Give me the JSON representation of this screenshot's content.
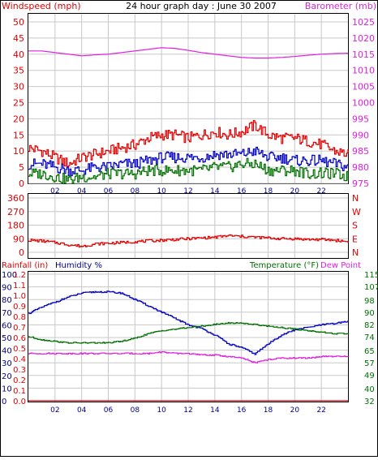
{
  "header": {
    "title": "24 hour graph day : June 30 2007",
    "left_label": "Windspeed (mph)",
    "right_label": "Barometer (mb)"
  },
  "colors": {
    "red": "#e00000",
    "magenta": "#e020e0",
    "blue": "#0000c0",
    "green": "#007000",
    "navy": "#00008b",
    "grid": "#c8c8c8",
    "frame": "#000000"
  },
  "chart_data": [
    {
      "id": "wind-baro",
      "type": "line",
      "xlabel": "",
      "x_ticks": [
        "02",
        "04",
        "06",
        "08",
        "10",
        "12",
        "14",
        "16",
        "18",
        "20",
        "22"
      ],
      "x_range": [
        0,
        24
      ],
      "left_axis": {
        "label": "Windspeed (mph)",
        "ticks": [
          0,
          5,
          10,
          15,
          20,
          25,
          30,
          35,
          40,
          45,
          50
        ],
        "range": [
          0,
          50
        ]
      },
      "right_axis": {
        "label": "Barometer (mb)",
        "ticks": [
          975,
          980,
          985,
          990,
          995,
          1000,
          1005,
          1010,
          1015,
          1020,
          1025
        ],
        "range": [
          975,
          1025
        ]
      },
      "series": [
        {
          "color": "red",
          "axis": "left",
          "x": [
            0,
            1,
            2,
            3,
            4,
            5,
            6,
            7,
            8,
            9,
            10,
            11,
            12,
            13,
            14,
            15,
            16,
            17,
            18,
            19,
            20,
            21,
            22,
            23,
            24
          ],
          "y": [
            11,
            10,
            8,
            6,
            8,
            9,
            10,
            11,
            12,
            14,
            15,
            15,
            14,
            15,
            16,
            15,
            16,
            18,
            15,
            14,
            14,
            13,
            12,
            10,
            9
          ]
        },
        {
          "color": "blue",
          "axis": "left",
          "x": [
            0,
            1,
            2,
            3,
            4,
            5,
            6,
            7,
            8,
            9,
            10,
            11,
            12,
            13,
            14,
            15,
            16,
            17,
            18,
            19,
            20,
            21,
            22,
            23,
            24
          ],
          "y": [
            6,
            6,
            5,
            4,
            4,
            5,
            5,
            6,
            6,
            7,
            8,
            8,
            8,
            8,
            9,
            9,
            9,
            10,
            8,
            8,
            7,
            7,
            7,
            6,
            5
          ]
        },
        {
          "color": "green",
          "axis": "left",
          "x": [
            0,
            1,
            2,
            3,
            4,
            5,
            6,
            7,
            8,
            9,
            10,
            11,
            12,
            13,
            14,
            15,
            16,
            17,
            18,
            19,
            20,
            21,
            22,
            23,
            24
          ],
          "y": [
            3,
            3,
            2,
            1,
            2,
            2,
            3,
            3,
            3,
            4,
            4,
            4,
            4,
            4,
            5,
            5,
            6,
            6,
            4,
            4,
            4,
            3,
            3,
            3,
            2
          ]
        },
        {
          "color": "magenta",
          "axis": "right",
          "x": [
            0,
            1,
            2,
            3,
            4,
            5,
            6,
            7,
            8,
            9,
            10,
            11,
            12,
            13,
            14,
            15,
            16,
            17,
            18,
            19,
            20,
            21,
            22,
            23,
            24
          ],
          "y": [
            1016,
            1016,
            1015.5,
            1015,
            1014.5,
            1014.8,
            1015,
            1015.5,
            1016,
            1016.5,
            1017,
            1016.8,
            1016.2,
            1015.5,
            1015,
            1014.5,
            1014,
            1013.8,
            1013.8,
            1014,
            1014.3,
            1014.7,
            1015,
            1015.2,
            1015.3
          ]
        }
      ]
    },
    {
      "id": "wind-direction",
      "type": "line",
      "x_ticks": [],
      "x_range": [
        0,
        24
      ],
      "left_axis": {
        "ticks": [
          0,
          90,
          180,
          270,
          360
        ],
        "range": [
          0,
          360
        ]
      },
      "right_axis": {
        "ticks": [
          "N",
          "E",
          "S",
          "W",
          "N"
        ]
      },
      "series": [
        {
          "color": "red",
          "axis": "left",
          "x": [
            0,
            1,
            2,
            3,
            4,
            5,
            6,
            7,
            8,
            9,
            10,
            11,
            12,
            13,
            14,
            15,
            16,
            17,
            18,
            19,
            20,
            21,
            22,
            23,
            24
          ],
          "y": [
            80,
            75,
            65,
            50,
            40,
            55,
            60,
            65,
            70,
            75,
            80,
            85,
            90,
            95,
            100,
            110,
            105,
            100,
            95,
            90,
            90,
            85,
            85,
            80,
            70
          ]
        }
      ]
    },
    {
      "id": "rain-humidity-temp",
      "type": "line",
      "x_ticks": [
        "02",
        "04",
        "06",
        "08",
        "10",
        "12",
        "14",
        "16",
        "18",
        "20",
        "22"
      ],
      "x_range": [
        0,
        24
      ],
      "labels": {
        "rainfall": "Rainfall (in)",
        "humidity": "Humidity %",
        "temperature": "Temperature (°F)",
        "dewpoint": "Dew Point"
      },
      "humidity_axis": {
        "ticks": [
          0,
          10,
          20,
          30,
          40,
          50,
          60,
          70,
          80,
          90,
          100
        ],
        "range": [
          0,
          100
        ]
      },
      "rain_axis": {
        "ticks": [
          "0.0",
          "0.1",
          "0.2",
          "0.3",
          "0.4",
          "0.5",
          "0.6",
          "0.7",
          "0.8",
          "0.9",
          "1.0",
          "1.1",
          "1.2"
        ],
        "range": [
          0,
          1.2
        ]
      },
      "temp_axis": {
        "ticks": [
          32,
          40,
          49,
          57,
          65,
          74,
          82,
          90,
          98,
          107,
          115
        ],
        "range": [
          32,
          115
        ]
      },
      "series": [
        {
          "color": "blue",
          "axis": "humidity",
          "x": [
            0,
            1,
            2,
            3,
            4,
            5,
            6,
            7,
            8,
            9,
            10,
            11,
            12,
            13,
            14,
            15,
            16,
            17,
            18,
            19,
            20,
            21,
            22,
            23,
            24
          ],
          "y": [
            69,
            74,
            78,
            82,
            85,
            86,
            86,
            85,
            80,
            75,
            70,
            65,
            60,
            57,
            52,
            45,
            42,
            37,
            45,
            52,
            56,
            58,
            60,
            61,
            63
          ]
        },
        {
          "color": "green",
          "axis": "temp",
          "x": [
            0,
            1,
            2,
            3,
            4,
            5,
            6,
            7,
            8,
            9,
            10,
            11,
            12,
            13,
            14,
            15,
            16,
            17,
            18,
            19,
            20,
            21,
            22,
            23,
            24
          ],
          "y": [
            74,
            72,
            71,
            70,
            70,
            70,
            70,
            71,
            73,
            76,
            78,
            79,
            80,
            81,
            82,
            83,
            83,
            82,
            81,
            80,
            79,
            78,
            77,
            76,
            76
          ]
        },
        {
          "color": "magenta",
          "axis": "temp",
          "x": [
            0,
            1,
            2,
            3,
            4,
            5,
            6,
            7,
            8,
            9,
            10,
            11,
            12,
            13,
            14,
            15,
            16,
            17,
            18,
            19,
            20,
            21,
            22,
            23,
            24
          ],
          "y": [
            63,
            63,
            63,
            63,
            63,
            63,
            63,
            63,
            63,
            63,
            64,
            63,
            63,
            62,
            62,
            61,
            60,
            57,
            59,
            60,
            60,
            60,
            61,
            61,
            61
          ]
        },
        {
          "color": "red",
          "axis": "rain",
          "x": [
            0,
            24
          ],
          "y": [
            0,
            0
          ]
        }
      ]
    }
  ]
}
